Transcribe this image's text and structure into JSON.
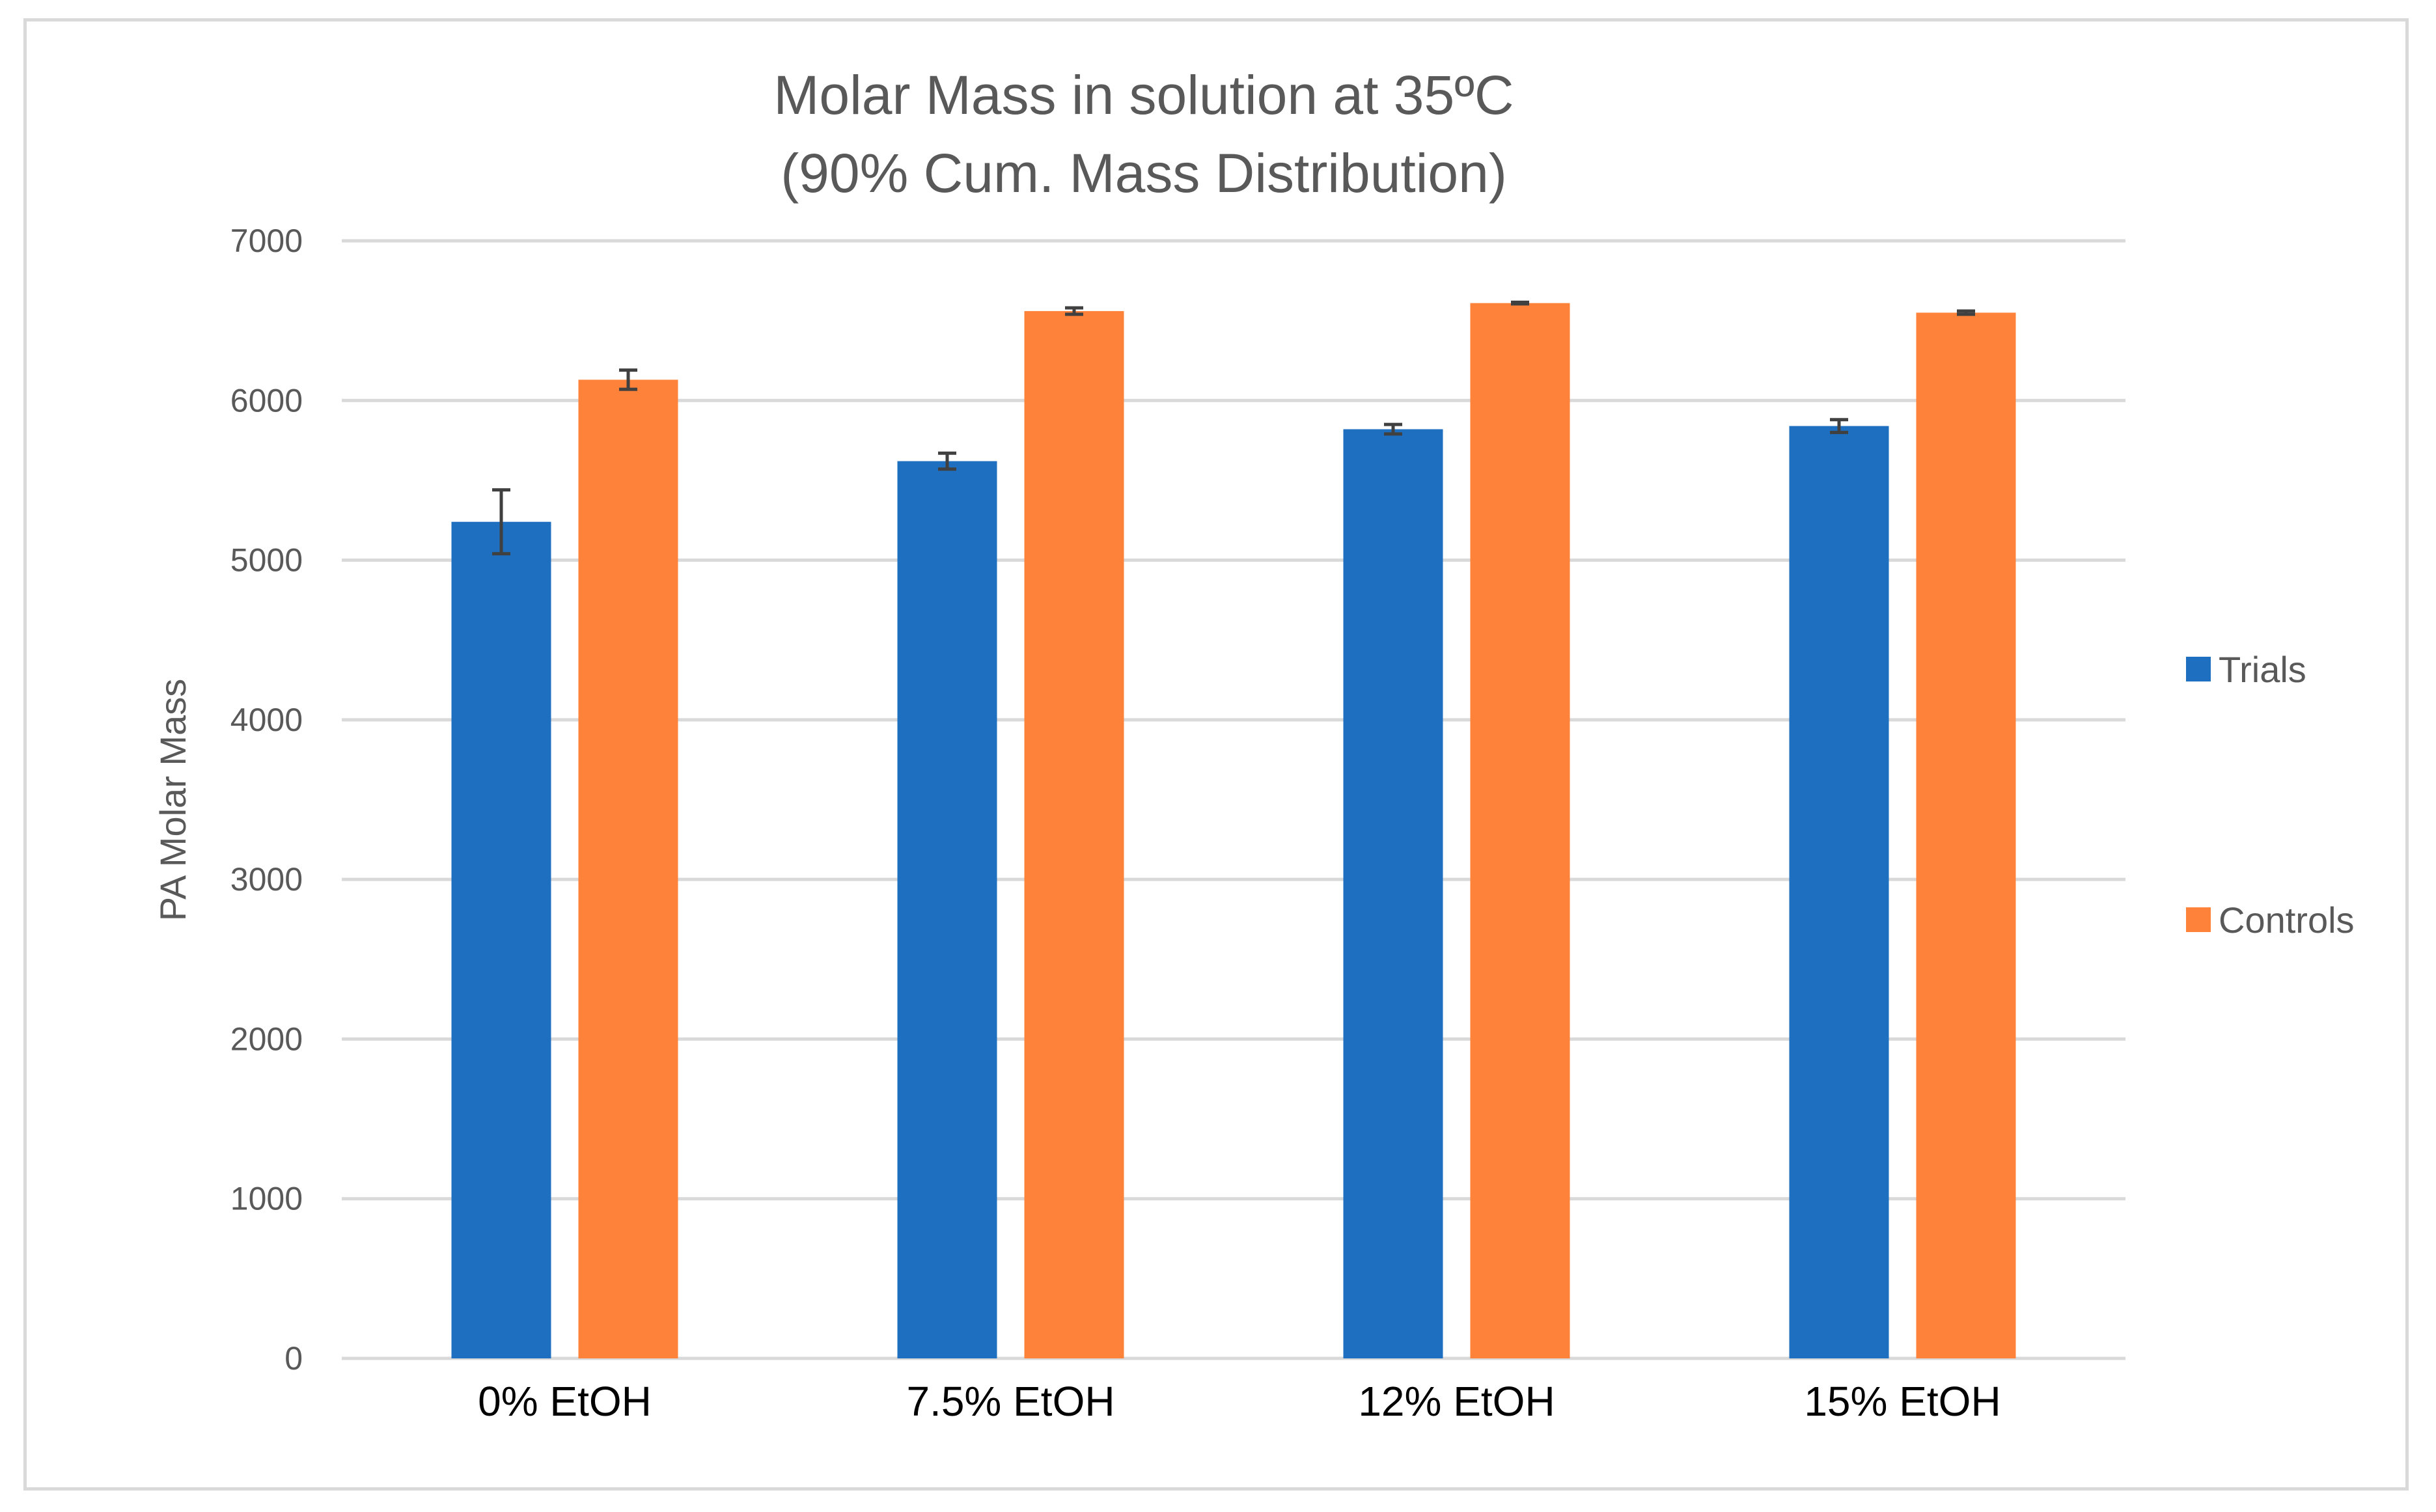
{
  "chart_data": {
    "type": "bar",
    "title_lines": [
      "Molar Mass in solution at 35ºC",
      "(90% Cum. Mass Distribution)"
    ],
    "xlabel": "",
    "ylabel": "PA Molar Mass",
    "ylim": [
      0,
      7000
    ],
    "ytick_step": 1000,
    "yticks": [
      "0",
      "1000",
      "2000",
      "3000",
      "4000",
      "5000",
      "6000",
      "7000"
    ],
    "grid": true,
    "legend_position": "right",
    "categories": [
      "0% EtOH",
      "7.5% EtOH",
      "12% EtOH",
      "15% EtOH"
    ],
    "series": [
      {
        "name": "Trials",
        "color": "#1f6fc1",
        "values": [
          5240,
          5620,
          5820,
          5840
        ],
        "errors": [
          200,
          50,
          30,
          40
        ]
      },
      {
        "name": "Controls",
        "color": "#ff823a",
        "values": [
          6130,
          6560,
          6610,
          6550
        ],
        "errors": [
          60,
          20,
          5,
          10
        ]
      }
    ],
    "gridline_color": "#d9d9d9",
    "errorbar_color": "#404040"
  }
}
